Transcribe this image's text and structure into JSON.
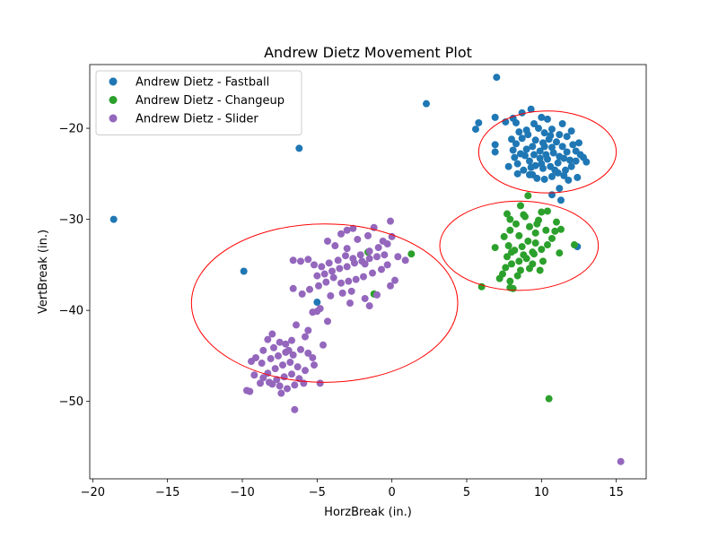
{
  "chart_data": {
    "type": "scatter",
    "title": "Andrew Dietz Movement Plot",
    "xlabel": "HorzBreak (in.)",
    "ylabel": "VertBreak (in.)",
    "xlim": [
      -20.2,
      17.0
    ],
    "ylim": [
      -58.5,
      -13.0
    ],
    "xticks": [
      -20,
      -15,
      -10,
      -5,
      0,
      5,
      10,
      15
    ],
    "xtick_labels": [
      "−20",
      "−15",
      "−10",
      "−5",
      "0",
      "5",
      "10",
      "15"
    ],
    "yticks": [
      -20,
      -30,
      -40,
      -50
    ],
    "ytick_labels": [
      "−20",
      "−30",
      "−40",
      "−50"
    ],
    "grid": false,
    "legend_position": "top-left",
    "series": [
      {
        "name": "Andrew Dietz - Fastball",
        "color": "#1f77b4",
        "points": [
          [
            7.0,
            -14.4
          ],
          [
            2.3,
            -17.3
          ],
          [
            -18.6,
            -30.0
          ],
          [
            -6.2,
            -22.2
          ],
          [
            -9.9,
            -35.7
          ],
          [
            -5.0,
            -39.1
          ],
          [
            12.4,
            -33.0
          ],
          [
            5.8,
            -19.4
          ],
          [
            5.6,
            -20.1
          ],
          [
            6.9,
            -18.8
          ],
          [
            6.9,
            -21.8
          ],
          [
            6.9,
            -22.6
          ],
          [
            7.6,
            -19.3
          ],
          [
            7.8,
            -24.2
          ],
          [
            8.1,
            -18.9
          ],
          [
            8.4,
            -25.0
          ],
          [
            8.7,
            -18.3
          ],
          [
            9.3,
            -17.9
          ],
          [
            9.4,
            -25.1
          ],
          [
            10.0,
            -18.8
          ],
          [
            10.7,
            -27.3
          ],
          [
            11.2,
            -26.6
          ],
          [
            11.3,
            -27.9
          ],
          [
            11.5,
            -25.2
          ],
          [
            11.8,
            -25.7
          ],
          [
            12.4,
            -25.4
          ],
          [
            12.8,
            -23.2
          ],
          [
            13.0,
            -23.7
          ],
          [
            12.5,
            -21.6
          ],
          [
            11.4,
            -19.5
          ],
          [
            10.4,
            -19.0
          ],
          [
            8.0,
            -21.2
          ],
          [
            8.3,
            -19.4
          ],
          [
            9.0,
            -20.2
          ],
          [
            9.5,
            -19.5
          ],
          [
            9.8,
            -20.0
          ],
          [
            10.2,
            -20.5
          ],
          [
            10.7,
            -20.1
          ],
          [
            11.2,
            -20.7
          ],
          [
            11.7,
            -20.9
          ],
          [
            12.1,
            -21.8
          ],
          [
            12.3,
            -22.5
          ],
          [
            12.6,
            -22.9
          ],
          [
            12.3,
            -23.6
          ],
          [
            12.0,
            -24.2
          ],
          [
            11.6,
            -24.6
          ],
          [
            11.1,
            -24.9
          ],
          [
            10.7,
            -25.3
          ],
          [
            10.2,
            -25.6
          ],
          [
            9.7,
            -25.5
          ],
          [
            9.2,
            -25.1
          ],
          [
            8.8,
            -24.6
          ],
          [
            8.4,
            -23.9
          ],
          [
            8.2,
            -23.2
          ],
          [
            8.1,
            -22.4
          ],
          [
            8.3,
            -21.7
          ],
          [
            8.7,
            -21.1
          ],
          [
            9.1,
            -20.7
          ],
          [
            9.6,
            -21.3
          ],
          [
            10.1,
            -21.6
          ],
          [
            10.5,
            -21.2
          ],
          [
            11.0,
            -21.5
          ],
          [
            11.4,
            -22.0
          ],
          [
            11.7,
            -22.6
          ],
          [
            11.5,
            -23.3
          ],
          [
            11.1,
            -23.8
          ],
          [
            10.6,
            -24.2
          ],
          [
            10.1,
            -24.4
          ],
          [
            9.6,
            -24.1
          ],
          [
            9.2,
            -23.6
          ],
          [
            8.9,
            -23.0
          ],
          [
            9.0,
            -22.3
          ],
          [
            9.4,
            -22.0
          ],
          [
            9.9,
            -22.5
          ],
          [
            10.3,
            -22.9
          ],
          [
            10.8,
            -22.7
          ],
          [
            11.2,
            -23.1
          ],
          [
            10.4,
            -23.4
          ],
          [
            9.9,
            -23.3
          ],
          [
            9.5,
            -22.9
          ],
          [
            10.2,
            -22.0
          ],
          [
            10.7,
            -22.1
          ],
          [
            10.0,
            -23.9
          ],
          [
            10.9,
            -24.6
          ],
          [
            8.5,
            -20.4
          ],
          [
            9.3,
            -24.3
          ],
          [
            11.9,
            -23.5
          ],
          [
            10.6,
            -20.8
          ],
          [
            8.6,
            -22.8
          ],
          [
            12.0,
            -20.3
          ]
        ]
      },
      {
        "name": "Andrew Dietz - Changeup",
        "color": "#2ca02c",
        "points": [
          [
            9.1,
            -27.4
          ],
          [
            10.4,
            -29.1
          ],
          [
            10.0,
            -29.2
          ],
          [
            9.8,
            -30.1
          ],
          [
            11.0,
            -30.3
          ],
          [
            11.3,
            -31.1
          ],
          [
            11.2,
            -33.7
          ],
          [
            12.2,
            -32.8
          ],
          [
            7.7,
            -29.4
          ],
          [
            7.9,
            -30.0
          ],
          [
            8.6,
            -28.5
          ],
          [
            8.9,
            -29.7
          ],
          [
            8.3,
            -30.5
          ],
          [
            9.2,
            -30.8
          ],
          [
            9.6,
            -31.5
          ],
          [
            10.3,
            -31.2
          ],
          [
            10.7,
            -32.1
          ],
          [
            10.4,
            -32.8
          ],
          [
            10.0,
            -33.3
          ],
          [
            9.5,
            -33.8
          ],
          [
            9.0,
            -34.3
          ],
          [
            8.5,
            -34.6
          ],
          [
            8.0,
            -34.9
          ],
          [
            7.6,
            -35.3
          ],
          [
            7.4,
            -36.0
          ],
          [
            7.2,
            -36.5
          ],
          [
            7.9,
            -36.8
          ],
          [
            8.4,
            -36.2
          ],
          [
            9.2,
            -35.4
          ],
          [
            9.9,
            -35.6
          ],
          [
            10.1,
            -34.6
          ],
          [
            9.4,
            -34.9
          ],
          [
            8.8,
            -33.9
          ],
          [
            8.2,
            -33.4
          ],
          [
            7.8,
            -32.9
          ],
          [
            7.5,
            -31.9
          ],
          [
            7.9,
            -31.2
          ],
          [
            8.5,
            -31.8
          ],
          [
            9.1,
            -32.4
          ],
          [
            9.6,
            -32.6
          ],
          [
            8.7,
            -33.0
          ],
          [
            8.0,
            -33.6
          ],
          [
            7.7,
            -34.1
          ],
          [
            8.6,
            -35.6
          ],
          [
            9.7,
            -30.5
          ],
          [
            10.9,
            -31.3
          ],
          [
            8.1,
            -37.6
          ],
          [
            7.9,
            -37.5
          ],
          [
            6.9,
            -33.1
          ],
          [
            6.0,
            -37.4
          ],
          [
            10.5,
            -49.7
          ],
          [
            1.3,
            -33.8
          ],
          [
            -1.6,
            -33.6
          ],
          [
            -1.2,
            -38.2
          ],
          [
            8.8,
            -29.5
          ],
          [
            9.4,
            -33.6
          ]
        ]
      },
      {
        "name": "Andrew Dietz - Slider",
        "color": "#9467bd",
        "points": [
          [
            -0.1,
            -30.2
          ],
          [
            -1.2,
            -30.9
          ],
          [
            -2.6,
            -31.0
          ],
          [
            -3.0,
            -31.2
          ],
          [
            -3.4,
            -31.6
          ],
          [
            -4.3,
            -32.4
          ],
          [
            -2.3,
            -32.2
          ],
          [
            -1.6,
            -31.8
          ],
          [
            0.0,
            -31.9
          ],
          [
            -0.3,
            -32.7
          ],
          [
            -0.9,
            -33.1
          ],
          [
            -1.5,
            -33.5
          ],
          [
            -2.1,
            -33.9
          ],
          [
            -2.6,
            -34.3
          ],
          [
            -3.1,
            -34.0
          ],
          [
            -3.6,
            -34.5
          ],
          [
            -4.2,
            -34.8
          ],
          [
            -4.7,
            -35.2
          ],
          [
            -5.2,
            -35.0
          ],
          [
            -5.6,
            -34.4
          ],
          [
            -6.1,
            -34.6
          ],
          [
            -6.6,
            -34.5
          ],
          [
            -5.0,
            -36.2
          ],
          [
            -4.5,
            -36.0
          ],
          [
            -4.0,
            -35.7
          ],
          [
            -3.5,
            -35.4
          ],
          [
            -3.0,
            -35.2
          ],
          [
            -2.5,
            -34.8
          ],
          [
            -2.0,
            -34.6
          ],
          [
            -1.5,
            -34.3
          ],
          [
            -1.0,
            -34.1
          ],
          [
            -0.5,
            -33.9
          ],
          [
            0.4,
            -34.1
          ],
          [
            0.9,
            -34.5
          ],
          [
            -0.7,
            -35.5
          ],
          [
            -1.3,
            -35.9
          ],
          [
            -1.9,
            -36.3
          ],
          [
            -2.4,
            -36.6
          ],
          [
            -2.9,
            -36.8
          ],
          [
            -3.4,
            -37.0
          ],
          [
            -3.9,
            -36.4
          ],
          [
            -4.4,
            -36.9
          ],
          [
            -4.9,
            -37.3
          ],
          [
            -5.5,
            -37.7
          ],
          [
            -6.0,
            -38.2
          ],
          [
            -6.6,
            -37.6
          ],
          [
            -4.1,
            -38.4
          ],
          [
            -3.3,
            -38.1
          ],
          [
            -2.7,
            -37.9
          ],
          [
            -1.8,
            -38.7
          ],
          [
            -1.0,
            -38.3
          ],
          [
            -0.1,
            -37.3
          ],
          [
            0.2,
            -36.7
          ],
          [
            -0.3,
            -35.0
          ],
          [
            -2.8,
            -39.2
          ],
          [
            -1.5,
            -39.5
          ],
          [
            -4.8,
            -39.8
          ],
          [
            -5.3,
            -40.2
          ],
          [
            -5.0,
            -40.1
          ],
          [
            -4.3,
            -41.2
          ],
          [
            -5.6,
            -42.2
          ],
          [
            -5.8,
            -42.9
          ],
          [
            -6.4,
            -41.6
          ],
          [
            -6.7,
            -43.3
          ],
          [
            -7.1,
            -43.7
          ],
          [
            -7.5,
            -43.5
          ],
          [
            -8.0,
            -42.6
          ],
          [
            -8.3,
            -43.2
          ],
          [
            -8.6,
            -44.4
          ],
          [
            -9.1,
            -45.2
          ],
          [
            -9.4,
            -45.6
          ],
          [
            -8.7,
            -45.8
          ],
          [
            -8.1,
            -45.3
          ],
          [
            -7.6,
            -45.0
          ],
          [
            -7.1,
            -44.6
          ],
          [
            -6.6,
            -44.9
          ],
          [
            -6.1,
            -44.3
          ],
          [
            -5.6,
            -44.7
          ],
          [
            -5.3,
            -45.2
          ],
          [
            -5.2,
            -46.0
          ],
          [
            -5.8,
            -46.6
          ],
          [
            -6.3,
            -46.2
          ],
          [
            -6.8,
            -45.7
          ],
          [
            -7.3,
            -46.0
          ],
          [
            -7.8,
            -46.4
          ],
          [
            -8.3,
            -46.9
          ],
          [
            -8.6,
            -47.4
          ],
          [
            -8.2,
            -47.9
          ],
          [
            -7.7,
            -47.6
          ],
          [
            -7.2,
            -47.3
          ],
          [
            -6.7,
            -47.0
          ],
          [
            -6.2,
            -47.5
          ],
          [
            -5.9,
            -48.0
          ],
          [
            -6.5,
            -48.2
          ],
          [
            -7.0,
            -48.6
          ],
          [
            -7.5,
            -48.3
          ],
          [
            -8.0,
            -48.1
          ],
          [
            -8.8,
            -48.0
          ],
          [
            -9.2,
            -47.1
          ],
          [
            -9.7,
            -48.8
          ],
          [
            -9.5,
            -48.9
          ],
          [
            -7.4,
            -49.1
          ],
          [
            -4.8,
            -48.0
          ],
          [
            -6.5,
            -50.9
          ],
          [
            -4.6,
            -43.8
          ],
          [
            -7.9,
            -44.1
          ],
          [
            -6.9,
            -44.4
          ],
          [
            -3.0,
            -33.2
          ],
          [
            -3.8,
            -32.9
          ],
          [
            -1.8,
            -34.9
          ],
          [
            -0.6,
            -32.4
          ],
          [
            15.3,
            -56.6
          ]
        ]
      }
    ],
    "ellipses": [
      {
        "name": "Fastball",
        "center": [
          10.4,
          -22.6
        ],
        "width": 4.6,
        "height": 4.5,
        "color": "#ff0000"
      },
      {
        "name": "Changeup",
        "center": [
          8.5,
          -32.9
        ],
        "width": 5.3,
        "height": 4.9,
        "color": "#ff0000"
      },
      {
        "name": "Slider",
        "center": [
          -4.5,
          -39.2
        ],
        "width": 8.9,
        "height": 8.7,
        "color": "#ff0000"
      }
    ]
  }
}
